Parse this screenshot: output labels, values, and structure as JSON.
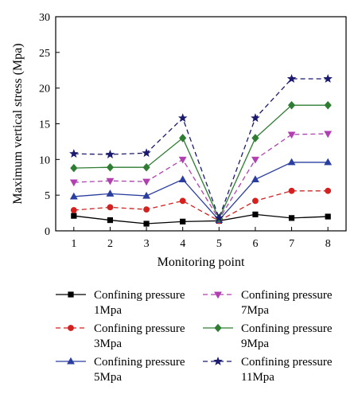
{
  "chart_data": {
    "type": "line",
    "title": "",
    "xlabel": "Monitoring point",
    "ylabel": "Maximum vertical stress (Mpa)",
    "x": [
      1,
      2,
      3,
      4,
      5,
      6,
      7,
      8
    ],
    "xlim": [
      0.5,
      8.5
    ],
    "ylim": [
      0,
      30
    ],
    "yticks": [
      0,
      5,
      10,
      15,
      20,
      25,
      30
    ],
    "grid": false,
    "legend_position": "bottom",
    "series": [
      {
        "name_line1": "Confining pressure",
        "name_line2": "1Mpa",
        "color": "#000000",
        "dash": "solid",
        "marker": "square",
        "values": [
          2.1,
          1.5,
          1.0,
          1.3,
          1.4,
          2.3,
          1.8,
          2.0
        ]
      },
      {
        "name_line1": "Confining pressure",
        "name_line2": "3Mpa",
        "color": "#d62020",
        "dash": "dashed",
        "marker": "circle",
        "values": [
          2.9,
          3.3,
          3.0,
          4.2,
          1.4,
          4.2,
          5.6,
          5.6
        ]
      },
      {
        "name_line1": "Confining pressure",
        "name_line2": "5Mpa",
        "color": "#2a3ea0",
        "dash": "solid",
        "marker": "triangle-up",
        "values": [
          4.8,
          5.2,
          4.9,
          7.2,
          1.5,
          7.2,
          9.6,
          9.6
        ]
      },
      {
        "name_line1": "Confining pressure",
        "name_line2": "7Mpa",
        "color": "#b040b0",
        "dash": "dashed",
        "marker": "triangle-down",
        "values": [
          6.8,
          7.0,
          6.9,
          10.0,
          1.6,
          10.0,
          13.5,
          13.6
        ]
      },
      {
        "name_line1": "Confining pressure",
        "name_line2": "9Mpa",
        "color": "#2e7d32",
        "dash": "solid",
        "marker": "diamond",
        "values": [
          8.8,
          8.9,
          8.9,
          13.0,
          1.7,
          13.0,
          17.6,
          17.6
        ]
      },
      {
        "name_line1": "Confining pressure",
        "name_line2": "11Mpa",
        "color": "#1a1a6e",
        "dash": "dashed",
        "marker": "star",
        "values": [
          10.8,
          10.7,
          10.9,
          15.8,
          1.8,
          15.8,
          21.3,
          21.3
        ]
      }
    ]
  }
}
